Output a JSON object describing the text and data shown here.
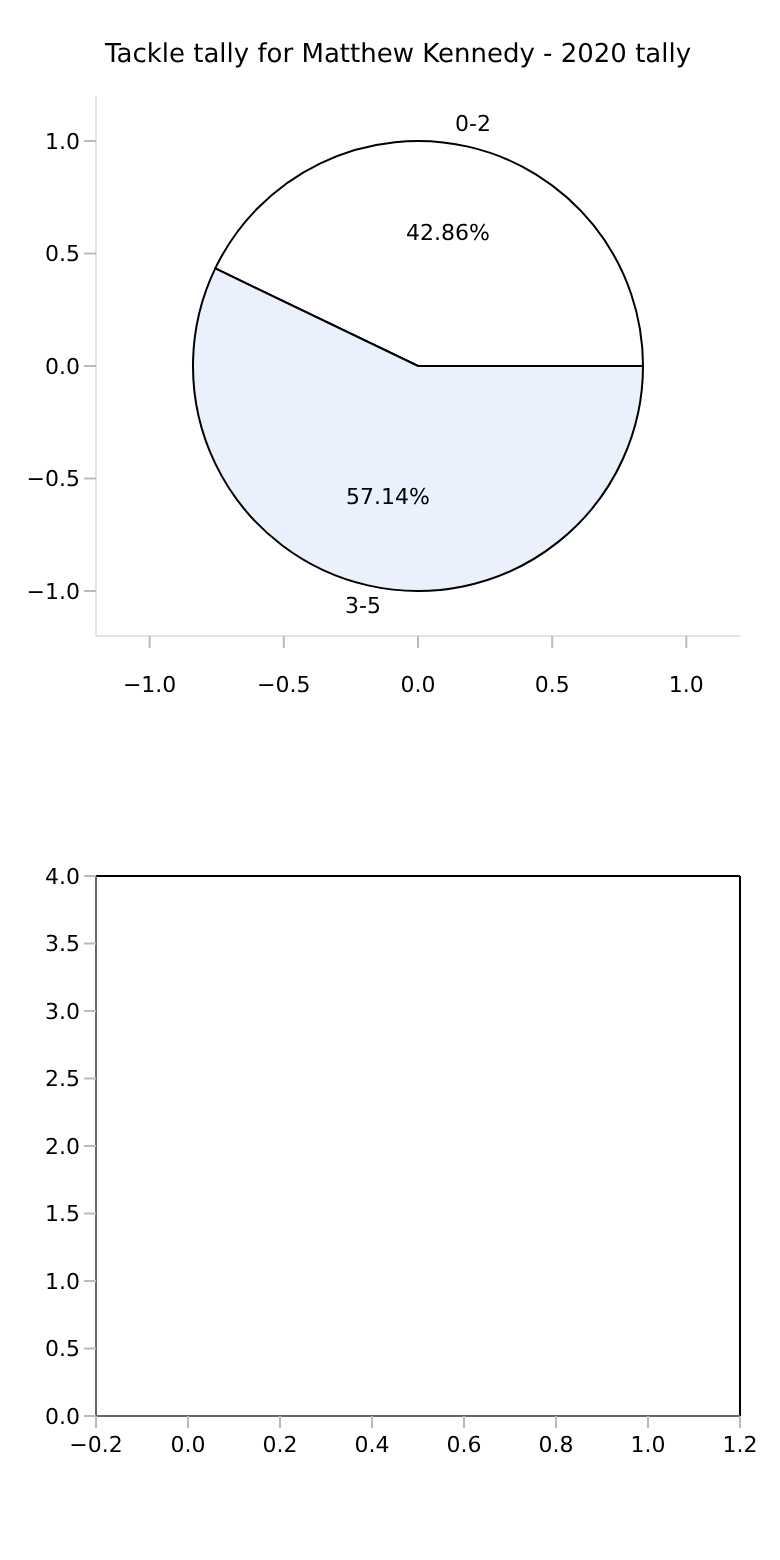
{
  "chart_data": [
    {
      "type": "pie",
      "title": "Tackle tally for Matthew Kennedy - 2020 tally",
      "categories": [
        "0-2",
        "3-5"
      ],
      "values": [
        42.86,
        57.14
      ],
      "colors": [
        "#ffffff",
        "#eaf0fc"
      ],
      "value_labels": [
        "42.86%",
        "57.14%"
      ]
    },
    {
      "type": "scatter",
      "xlim": [
        -1.2,
        1.2
      ],
      "ylim": [
        -1.2,
        1.2
      ],
      "xticks": [
        {
          "value": -1,
          "label": "−1.0"
        },
        {
          "value": -0.5,
          "label": "−0.5"
        },
        {
          "value": 0,
          "label": "0.0"
        },
        {
          "value": 0.5,
          "label": "0.5"
        },
        {
          "value": 1,
          "label": "1.0"
        }
      ],
      "yticks": [
        {
          "value": -1,
          "label": "−1.0"
        },
        {
          "value": -0.5,
          "label": "−0.5"
        },
        {
          "value": 0,
          "label": "0.0"
        },
        {
          "value": 0.5,
          "label": "0.5"
        },
        {
          "value": 1,
          "label": "1.0"
        }
      ]
    },
    {
      "type": "scatter",
      "xlim": [
        -0.2,
        1.2
      ],
      "ylim": [
        0,
        4
      ],
      "xticks": [
        {
          "value": -0.2,
          "label": "−0.2"
        },
        {
          "value": 0,
          "label": "0.0"
        },
        0.2,
        0.4,
        0.6,
        0.8,
        {
          "value": 1,
          "label": "1.0"
        },
        1.2
      ],
      "yticks": [
        {
          "value": 0,
          "label": "0.0"
        },
        0.5,
        {
          "value": 1,
          "label": "1.0"
        },
        1.5,
        {
          "value": 2,
          "label": "2.0"
        },
        2.5,
        {
          "value": 3,
          "label": "3.0"
        },
        3.5,
        {
          "value": 4,
          "label": "4.0"
        }
      ]
    }
  ]
}
